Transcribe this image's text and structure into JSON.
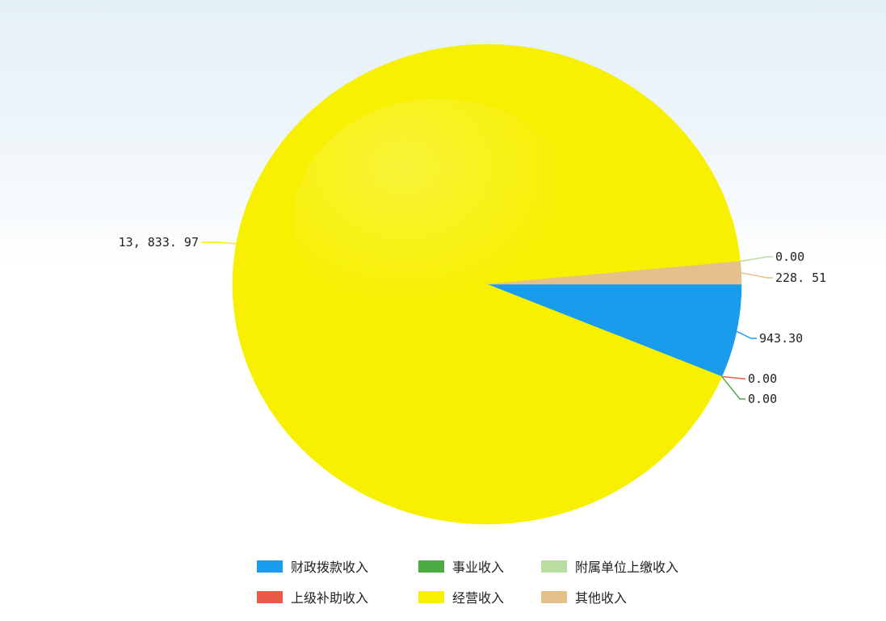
{
  "chart_data": {
    "type": "pie",
    "title": "",
    "slices": [
      {
        "name": "财政拨款收入",
        "value": 943.3,
        "label": "943.30",
        "color": "#1a9cec"
      },
      {
        "name": "事业收入",
        "value": 0.0,
        "label": "0.00",
        "color": "#4cab42"
      },
      {
        "name": "附属单位上缴收入",
        "value": 0.0,
        "label": "0.00",
        "color": "#b9dca0"
      },
      {
        "name": "上级补助收入",
        "value": 0.0,
        "label": "0.00",
        "color": "#ea5a48"
      },
      {
        "name": "经营收入",
        "value": 13833.97,
        "label": "13, 833. 97",
        "color": "#f7f000"
      },
      {
        "name": "其他收入",
        "value": 228.51,
        "label": "228. 51",
        "color": "#e4c08a"
      }
    ],
    "legend": {
      "placement": "bottom",
      "entries": [
        "财政拨款收入",
        "事业收入",
        "附属单位上缴收入",
        "上级补助收入",
        "经营收入",
        "其他收入"
      ]
    }
  }
}
